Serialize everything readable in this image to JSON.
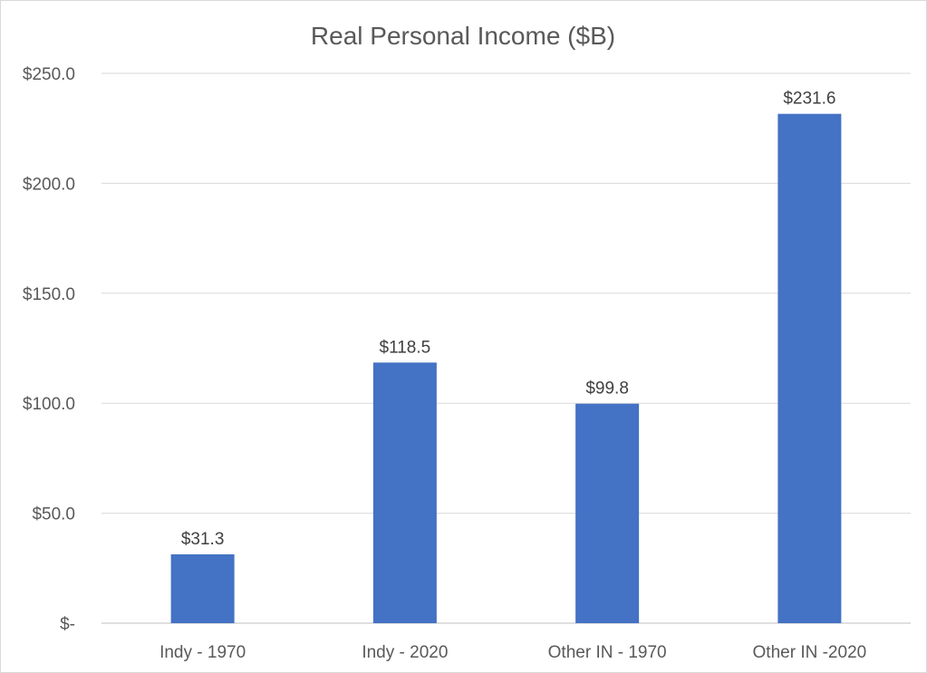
{
  "chart_data": {
    "type": "bar",
    "title": "Real Personal Income ($B)",
    "xlabel": "",
    "ylabel": "",
    "categories": [
      "Indy - 1970",
      "Indy - 2020",
      "Other IN - 1970",
      "Other IN -2020"
    ],
    "values": [
      31.3,
      118.5,
      99.8,
      231.6
    ],
    "value_labels": [
      "$31.3",
      "$118.5",
      "$99.8",
      "$231.6"
    ],
    "ylim": [
      0,
      250
    ],
    "yticks": [
      0,
      50,
      100,
      150,
      200,
      250
    ],
    "ytick_labels": [
      "$-",
      "$50.0",
      "$100.0",
      "$150.0",
      "$200.0",
      "$250.0"
    ],
    "grid": true,
    "legend": "none",
    "bar_color": "#4472c4"
  }
}
